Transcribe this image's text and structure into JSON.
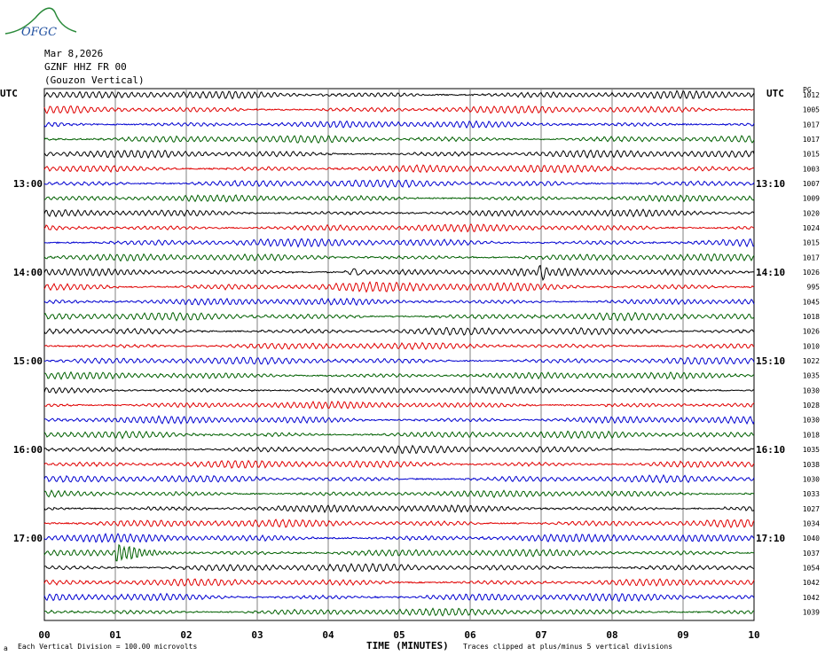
{
  "logo": {
    "text": "OFGC"
  },
  "header": {
    "date": "Mar 8,2026",
    "station": "GZNF HHZ FR 00",
    "name": "(Gouzon Vertical)"
  },
  "axis": {
    "left_unit": "UTC",
    "right_unit": "UTC",
    "right_col_header": "PG",
    "xlabel": "TIME (MINUTES)",
    "x_ticks": [
      "00",
      "01",
      "02",
      "03",
      "04",
      "05",
      "06",
      "07",
      "08",
      "09",
      "10"
    ]
  },
  "footer": {
    "division_note": "Each Vertical Division =  100.00 microvolts",
    "clip_note": "Traces clipped at plus/minus 5 vertical divisions"
  },
  "chart_data": {
    "type": "line",
    "title": "GZNF HHZ FR 00 (Gouzon Vertical)",
    "xlabel": "TIME (MINUTES)",
    "xlim": [
      0,
      10
    ],
    "trace_count": 36,
    "line_minutes": 10,
    "left_time_labels": [
      {
        "trace": 6,
        "label": "13:00"
      },
      {
        "trace": 12,
        "label": "14:00"
      },
      {
        "trace": 18,
        "label": "15:00"
      },
      {
        "trace": 24,
        "label": "16:00"
      },
      {
        "trace": 30,
        "label": "17:00"
      }
    ],
    "right_time_labels": [
      {
        "trace": 6,
        "label": "13:10"
      },
      {
        "trace": 12,
        "label": "14:10"
      },
      {
        "trace": 18,
        "label": "15:10"
      },
      {
        "trace": 24,
        "label": "16:10"
      },
      {
        "trace": 30,
        "label": "17:10"
      }
    ],
    "trace_colors": [
      "#000000",
      "#e00000",
      "#0000d0",
      "#006000"
    ],
    "pg_values": [
      "1012",
      "1005",
      "1017",
      "1017",
      "1015",
      "1003",
      "1007",
      "1009",
      "1020",
      "1024",
      "1015",
      "1017",
      "1026",
      "995",
      "1045",
      "1018",
      "1026",
      "1010",
      "1022",
      "1035",
      "1030",
      "1028",
      "1030",
      "1018",
      "1035",
      "1038",
      "1030",
      "1033",
      "1027",
      "1034",
      "1040",
      "1037",
      "1054",
      "1042",
      "1042",
      "1039"
    ],
    "events": [
      {
        "trace": 31,
        "minute": 1.0,
        "type": "quake"
      },
      {
        "trace": 12,
        "minute": 4.4,
        "type": "burst"
      },
      {
        "trace": 12,
        "minute": 7.0,
        "type": "burst"
      }
    ]
  }
}
